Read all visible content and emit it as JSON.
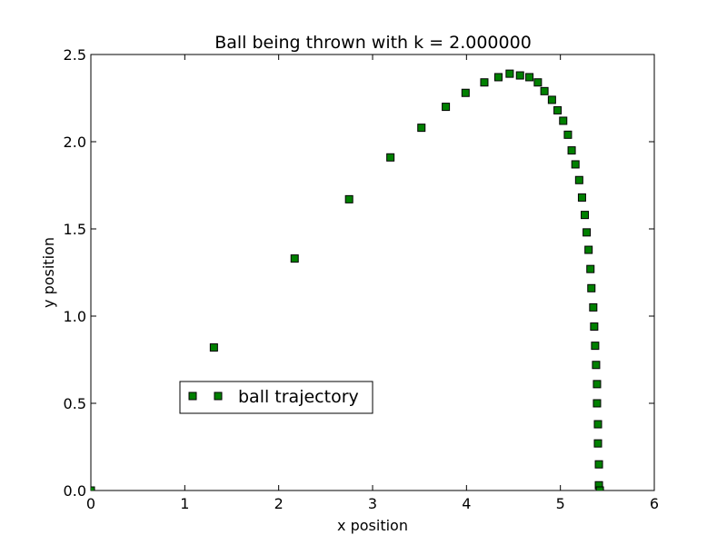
{
  "chart_data": {
    "type": "scatter",
    "title": "Ball being thrown with k = 2.000000",
    "xlabel": "x position",
    "ylabel": "y position",
    "xlim": [
      0,
      6
    ],
    "ylim": [
      0,
      2.5
    ],
    "xticks": [
      "0",
      "1",
      "2",
      "3",
      "4",
      "5",
      "6"
    ],
    "yticks": [
      "0.0",
      "0.5",
      "1.0",
      "1.5",
      "2.0",
      "2.5"
    ],
    "grid": false,
    "legend_position": "lower-left",
    "series": [
      {
        "name": "ball trajectory",
        "marker": "square",
        "color": "#008000",
        "x": [
          0.0,
          1.31,
          2.17,
          2.75,
          3.19,
          3.52,
          3.78,
          3.99,
          4.19,
          4.34,
          4.46,
          4.57,
          4.67,
          4.76,
          4.83,
          4.91,
          4.97,
          5.03,
          5.08,
          5.12,
          5.16,
          5.2,
          5.23,
          5.26,
          5.28,
          5.3,
          5.32,
          5.33,
          5.35,
          5.36,
          5.37,
          5.38,
          5.39,
          5.39,
          5.4,
          5.4,
          5.41,
          5.41,
          5.42
        ],
        "y": [
          0.0,
          0.82,
          1.33,
          1.67,
          1.91,
          2.08,
          2.2,
          2.28,
          2.34,
          2.37,
          2.39,
          2.38,
          2.37,
          2.34,
          2.29,
          2.24,
          2.18,
          2.12,
          2.04,
          1.95,
          1.87,
          1.78,
          1.68,
          1.58,
          1.48,
          1.38,
          1.27,
          1.16,
          1.05,
          0.94,
          0.83,
          0.72,
          0.61,
          0.5,
          0.38,
          0.27,
          0.15,
          0.03,
          0.0
        ]
      }
    ]
  }
}
